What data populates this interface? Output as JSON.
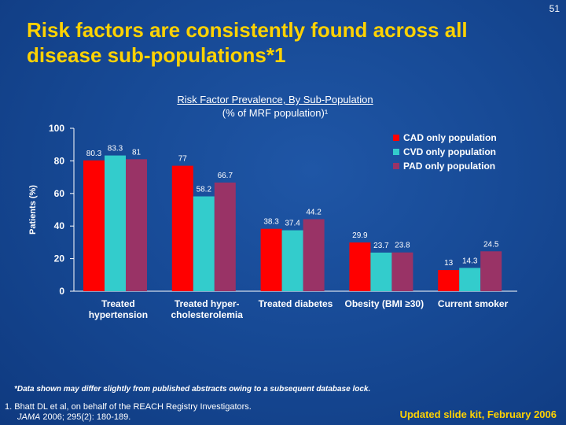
{
  "slide": {
    "number": "51",
    "title": "Risk factors are consistently found across all disease sub-populations*1",
    "footnote": "*Data shown may differ slightly from published abstracts owing to a subsequent database lock.",
    "reference_line1": "1. Bhatt DL et al, on behalf of the REACH Registry Investigators.",
    "reference_journal": "JAMA",
    "reference_rest": " 2006; 295(2): 180-189.",
    "kit_label": "Updated slide kit, February 2006"
  },
  "chart_data": {
    "type": "bar",
    "title_line1": "Risk Factor Prevalence, By Sub-Population",
    "title_line2": "(% of MRF population)¹",
    "ylabel": "Patients (%)",
    "ylim": [
      0,
      100
    ],
    "yticks": [
      0,
      20,
      40,
      60,
      80,
      100
    ],
    "grid": false,
    "legend_position": "top-right",
    "categories": [
      [
        "Treated",
        "hypertension"
      ],
      [
        "Treated hyper-",
        "cholesterolemia"
      ],
      [
        "Treated diabetes"
      ],
      [
        "Obesity (BMI ≥30)"
      ],
      [
        "Current smoker"
      ]
    ],
    "series": [
      {
        "name": "CAD only population",
        "color": "#ff0000",
        "values": [
          80.3,
          77,
          38.3,
          29.9,
          13
        ],
        "labels": [
          "80.3",
          "77",
          "38.3",
          "29.9",
          "13"
        ]
      },
      {
        "name": "CVD only population",
        "color": "#33cccc",
        "values": [
          83.3,
          58.2,
          37.4,
          23.7,
          14.3
        ],
        "labels": [
          "83.3",
          "58.2",
          "37.4",
          "23.7",
          "14.3"
        ]
      },
      {
        "name": "PAD only population",
        "color": "#993366",
        "values": [
          81,
          66.7,
          44.2,
          23.8,
          24.5
        ],
        "labels": [
          "81",
          "66.7",
          "44.2",
          "23.8",
          "24.5"
        ]
      }
    ]
  }
}
